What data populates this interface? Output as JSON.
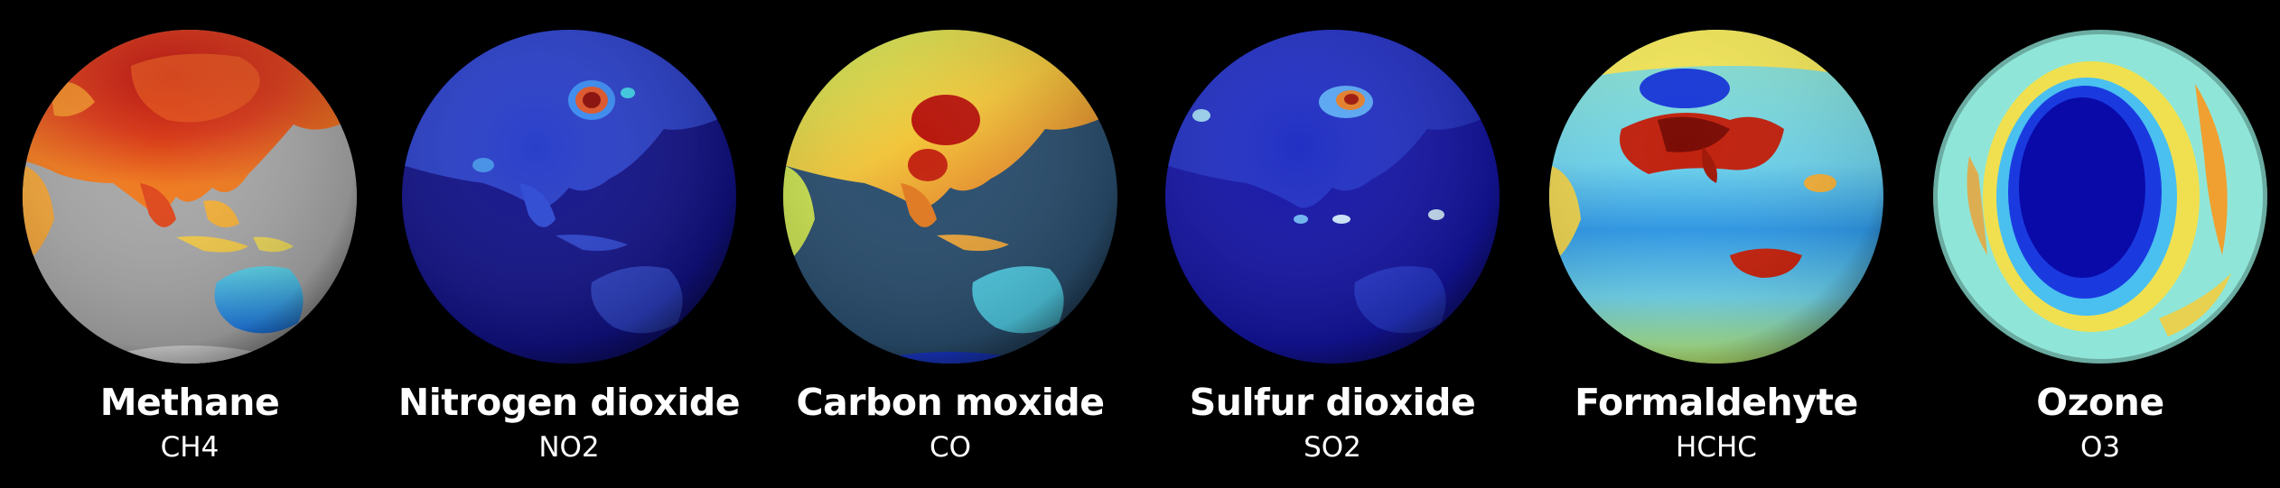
{
  "background_color": "#000000",
  "panels": [
    {
      "name": "Methane",
      "formula": "CH4",
      "icon": "methane-globe-icon"
    },
    {
      "name": "Nitrogen dioxide",
      "formula": "NO2",
      "icon": "nitrogen-dioxide-globe-icon"
    },
    {
      "name": "Carbon moxide",
      "formula": "CO",
      "icon": "carbon-monoxide-globe-icon"
    },
    {
      "name": "Sulfur dioxide",
      "formula": "SO2",
      "icon": "sulfur-dioxide-globe-icon"
    },
    {
      "name": "Formaldehyte",
      "formula": "HCHC",
      "icon": "formaldehyde-globe-icon"
    },
    {
      "name": "Ozone",
      "formula": "O3",
      "icon": "ozone-globe-icon"
    }
  ]
}
